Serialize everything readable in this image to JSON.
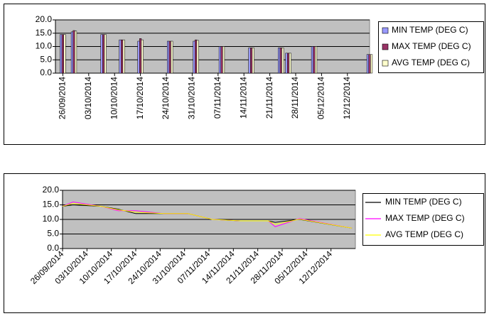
{
  "chart_data": [
    {
      "type": "bar",
      "x": [
        "26/09/2014",
        "29/09/2014",
        "07/10/2014",
        "12/10/2014",
        "17/10/2014",
        "25/10/2014",
        "01/11/2014",
        "08/11/2014",
        "16/11/2014",
        "24/11/2014",
        "26/11/2014",
        "03/12/2014",
        "18/12/2014"
      ],
      "series": [
        {
          "name": "MIN TEMP (DEG C)",
          "color": "#9999ff",
          "values": [
            14.5,
            15.5,
            14.5,
            12.5,
            12.0,
            12.0,
            12.0,
            10.0,
            9.5,
            9.5,
            7.5,
            10.0,
            7.0
          ]
        },
        {
          "name": "MAX TEMP (DEG C)",
          "color": "#993366",
          "values": [
            14.5,
            16.0,
            14.5,
            12.5,
            13.0,
            12.0,
            12.5,
            10.0,
            9.5,
            9.5,
            7.5,
            10.0,
            7.0
          ]
        },
        {
          "name": "AVG TEMP (DEG C)",
          "color": "#ffffcc",
          "values": [
            14.5,
            15.8,
            14.5,
            12.5,
            12.5,
            12.0,
            12.3,
            10.0,
            9.5,
            9.5,
            7.5,
            10.0,
            7.0
          ]
        }
      ],
      "xlim": [
        "24/09/2014",
        "18/12/2014"
      ],
      "xticks": [
        "26/09/2014",
        "03/10/2014",
        "10/10/2014",
        "17/10/2014",
        "24/10/2014",
        "31/10/2014",
        "07/11/2014",
        "14/11/2014",
        "21/11/2014",
        "28/11/2014",
        "05/12/2014",
        "12/12/2014"
      ],
      "ylim": [
        0,
        20
      ],
      "yticks": [
        {
          "value": 0,
          "label": "0.0"
        },
        {
          "value": 5,
          "label": "5.0"
        },
        {
          "value": 10,
          "label": "10.0"
        },
        {
          "value": 15,
          "label": "15.0"
        },
        {
          "value": 20,
          "label": "20.0"
        }
      ],
      "grid": true,
      "legend": "right"
    },
    {
      "type": "line",
      "x": [
        "26/09/2014",
        "29/09/2014",
        "07/10/2014",
        "12/10/2014",
        "17/10/2014",
        "25/10/2014",
        "01/11/2014",
        "08/11/2014",
        "16/11/2014",
        "24/11/2014",
        "26/11/2014",
        "03/12/2014",
        "18/12/2014"
      ],
      "series": [
        {
          "name": "MIN TEMP (DEG C)",
          "color": "#000000",
          "values": [
            14.5,
            15.0,
            14.5,
            13.5,
            12.0,
            12.0,
            12.0,
            10.0,
            9.5,
            9.5,
            9.0,
            10.0,
            7.0
          ]
        },
        {
          "name": "MAX TEMP (DEG C)",
          "color": "#ff00ff",
          "values": [
            14.5,
            16.0,
            14.5,
            13.0,
            13.0,
            12.0,
            12.0,
            10.0,
            9.5,
            9.5,
            7.5,
            10.3,
            7.0
          ]
        },
        {
          "name": "AVG TEMP (DEG C)",
          "color": "#ffff00",
          "values": [
            14.5,
            15.5,
            14.5,
            13.3,
            12.5,
            12.0,
            12.0,
            10.0,
            9.5,
            9.5,
            8.3,
            10.1,
            7.0
          ]
        }
      ],
      "xlim": [
        "26/09/2014",
        "19/12/2014"
      ],
      "xticks": [
        "26/09/2014",
        "03/10/2014",
        "10/10/2014",
        "17/10/2014",
        "24/10/2014",
        "31/10/2014",
        "07/11/2014",
        "14/11/2014",
        "21/11/2014",
        "28/11/2014",
        "05/12/2014",
        "12/12/2014"
      ],
      "ylim": [
        0,
        20
      ],
      "yticks": [
        {
          "value": 0,
          "label": "0.0"
        },
        {
          "value": 5,
          "label": "5.0"
        },
        {
          "value": 10,
          "label": "10.0"
        },
        {
          "value": 15,
          "label": "15.0"
        },
        {
          "value": 20,
          "label": "20.0"
        }
      ],
      "grid": true,
      "legend": "right"
    }
  ]
}
